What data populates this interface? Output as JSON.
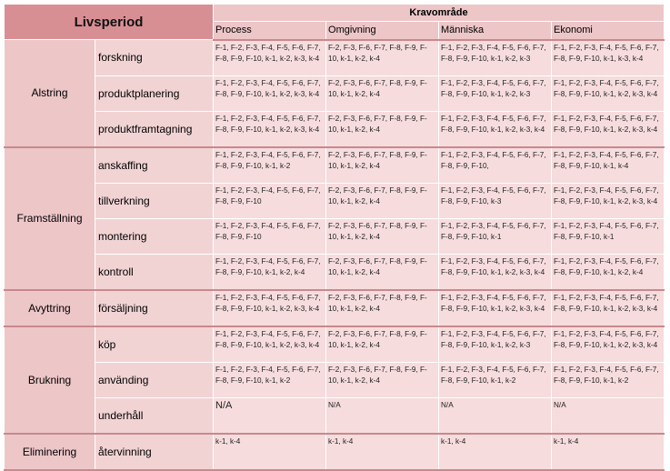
{
  "header": {
    "title": "Livsperiod",
    "group": "Kravområde",
    "columns": [
      "Process",
      "Omgivning",
      "Människa",
      "Ekonomi"
    ]
  },
  "phases": [
    {
      "name": "Alstring",
      "rows": [
        {
          "label": "forskning",
          "cells": [
            "F-1, F-2, F-3, F-4, F-5, F-6, F-7, F-8, F-9, F-10, k-1, k-2, k-3, k-4",
            "F-2, F-3, F-6, F-7, F-8, F-9, F-10, k-1, k-2, k-4",
            "F-1, F-2, F-3, F-4, F-5, F-6, F-7, F-8, F-9, F-10, k-1, k-2, k-3",
            "F-1, F-2, F-3, F-4, F-5, F-6, F-7, F-8, F-9, F-10, k-1, k-3, k-4"
          ]
        },
        {
          "label": "produktplanering",
          "cells": [
            "F-1, F-2, F-3, F-4, F-5, F-6, F-7, F-8, F-9, F-10, k-1, k-2, k-3, k-4",
            "F-2, F-3, F-6, F-7, F-8, F-9, F-10, k-1, k-2, k-4",
            "F-1, F-2, F-3, F-4, F-5, F-6, F-7, F-8, F-9, F-10, k-1, k-2, k-3",
            "F-1, F-2, F-3, F-4, F-5, F-6, F-7, F-8, F-9, F-10, k-1, k-2, k-3, k-4"
          ]
        },
        {
          "label": "produktframtagning",
          "cells": [
            "F-1, F-2, F-3, F-4, F-5, F-6, F-7, F-8, F-9, F-10, k-1, k-2, k-3, k-4",
            "F-2, F-3, F-6, F-7, F-8, F-9, F-10, k-1, k-2, k-4",
            "F-1, F-2, F-3, F-4, F-5, F-6, F-7, F-8, F-9, F-10, k-1, k-2, k-3, k-4",
            "F-1, F-2, F-3, F-4, F-5, F-6, F-7, F-8, F-9, F-10, k-1, k-2, k-3, k-4"
          ]
        }
      ]
    },
    {
      "name": "Framställning",
      "rows": [
        {
          "label": "anskaffing",
          "cells": [
            "F-1, F-2, F-3, F-4, F-5, F-6, F-7, F-8, F-9, F-10, k-1, k-2",
            "F-2, F-3, F-6, F-7, F-8, F-9, F-10, k-1, k-2, k-4",
            "F-1, F-2, F-3, F-4, F-5, F-6, F-7, F-8, F-9, F-10,",
            "F-1, F-2, F-3, F-4, F-5, F-6, F-7, F-8, F-9, F-10, k-1, k-4"
          ]
        },
        {
          "label": "tillverkning",
          "cells": [
            "F-1, F-2, F-3, F-4, F-5, F-6, F-7, F-8, F-9, F-10",
            "F-2, F-3, F-6, F-7, F-8, F-9, F-10, k-1, k-2, k-4",
            "F-1, F-2, F-3, F-4, F-5, F-6, F-7, F-8, F-9, F-10, k-3",
            "F-1, F-2, F-3, F-4, F-5, F-6, F-7, F-8, F-9, F-10, k-1, k-2, k-3, k-4"
          ]
        },
        {
          "label": "montering",
          "cells": [
            "F-1, F-2, F-3, F-4, F-5, F-6, F-7, F-8, F-9, F-10",
            "F-2, F-3, F-6, F-7, F-8, F-9, F-10, k-1, k-2, k-4",
            "F-1, F-2, F-3, F-4, F-5, F-6, F-7, F-8, F-9, F-10, k-1",
            "F-1, F-2, F-3, F-4, F-5, F-6, F-7, F-8, F-9, F-10, k-1"
          ]
        },
        {
          "label": "kontroll",
          "cells": [
            "F-1, F-2, F-3, F-4, F-5, F-6, F-7, F-8, F-9, F-10, k-1, k-2, k-4",
            "F-2, F-3, F-6, F-7, F-8, F-9, F-10, k-1, k-2, k-4",
            "F-1, F-2, F-3, F-4, F-5, F-6, F-7, F-8, F-9, F-10, k-1, k-2, k-3, k-4",
            "F-1, F-2, F-3, F-4, F-5, F-6, F-7, F-8, F-9, F-10, k-1, k-2, k-4"
          ]
        }
      ]
    },
    {
      "name": "Avyttring",
      "rows": [
        {
          "label": "försäljning",
          "cells": [
            "F-1, F-2, F-3, F-4, F-5, F-6, F-7, F-8, F-9, F-10, k-1, k-2, k-3, k-4",
            "F-2, F-3, F-6, F-7, F-8, F-9, F-10, k-1, k-2, k-4",
            "F-1, F-2, F-3, F-4, F-5, F-6, F-7, F-8, F-9, F-10, k-1, k-2, k-3, k-4",
            "F-1, F-2, F-3, F-4, F-5, F-6, F-7, F-8, F-9, F-10, k-1, k-2, k-3, k-4"
          ]
        }
      ]
    },
    {
      "name": "Brukning",
      "rows": [
        {
          "label": "köp",
          "cells": [
            "F-1, F-2, F-3, F-4, F-5, F-6, F-7, F-8, F-9, F-10, k-1, k-2, k-3, k-4",
            "F-2, F-3, F-6, F-7, F-8, F-9, F-10, k-1, k-2, k-4",
            "F-1, F-2, F-3, F-4, F-5, F-6, F-7, F-8, F-9, F-10, k-1, k-2, k-3",
            "F-1, F-2, F-3, F-4, F-5, F-6, F-7, F-8, F-9, F-10, k-1, k-2, k-3, k-4"
          ]
        },
        {
          "label": "använding",
          "cells": [
            "F-1, F-2, F-3, F-4, F-5, F-6, F-7, F-8, F-9, F-10, k-1, k-2",
            "F-2, F-3, F-6, F-7, F-8, F-9, F-10, k-1, k-2, k-4",
            "F-1, F-2, F-3, F-4, F-5, F-6, F-7, F-8, F-9, F-10, k-1, k-2",
            "F-1, F-2, F-3, F-4, F-5, F-6, F-7, F-8, F-9, F-10, k-1, k-2"
          ]
        },
        {
          "label": "underhåll",
          "cells": [
            "N/A",
            "N/A",
            "N/A",
            "N/A"
          ]
        }
      ]
    },
    {
      "name": "Eliminering",
      "rows": [
        {
          "label": "återvinning",
          "cells": [
            "k-1, k-4",
            "k-1, k-4",
            "k-1, k-4",
            "k-1, k-4"
          ]
        }
      ]
    }
  ]
}
